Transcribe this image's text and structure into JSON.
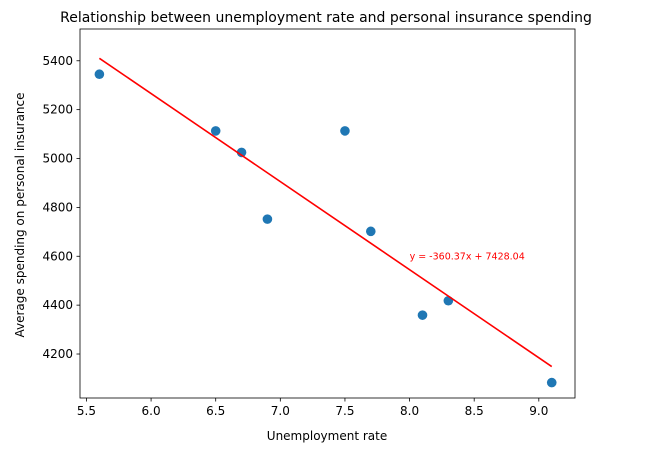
{
  "chart_data": {
    "type": "scatter",
    "title": "Relationship between unemployment rate and personal insurance spending",
    "xlabel": "Unemployment rate",
    "ylabel": "Average spending on personal insurance",
    "xlim": [
      5.45,
      9.28
    ],
    "ylim": [
      4020,
      5530
    ],
    "xticks": [
      5.5,
      6.0,
      6.5,
      7.0,
      7.5,
      8.0,
      8.5,
      9.0
    ],
    "xtick_labels": [
      "5.5",
      "6.0",
      "6.5",
      "7.0",
      "7.5",
      "8.0",
      "8.5",
      "9.0"
    ],
    "yticks": [
      4200,
      4400,
      4600,
      4800,
      5000,
      5200,
      5400
    ],
    "ytick_labels": [
      "4200",
      "4400",
      "4600",
      "4800",
      "5000",
      "5200",
      "5400"
    ],
    "grid": false,
    "series": [
      {
        "kind": "scatter",
        "color": "#1f77b4",
        "points": [
          {
            "x": 5.6,
            "y": 5345
          },
          {
            "x": 6.5,
            "y": 5113
          },
          {
            "x": 6.7,
            "y": 5025
          },
          {
            "x": 6.9,
            "y": 4752
          },
          {
            "x": 7.5,
            "y": 5113
          },
          {
            "x": 7.7,
            "y": 4702
          },
          {
            "x": 8.1,
            "y": 4359
          },
          {
            "x": 8.3,
            "y": 4418
          },
          {
            "x": 9.1,
            "y": 4083
          }
        ]
      },
      {
        "kind": "line",
        "color": "#ff0000",
        "slope": -360.37,
        "intercept": 7428.04,
        "x_range": [
          5.6,
          9.1
        ]
      }
    ],
    "annotations": [
      {
        "text": "y = -360.37x + 7428.04",
        "x": 8.0,
        "y": 4600,
        "color": "#ff0000"
      }
    ]
  }
}
